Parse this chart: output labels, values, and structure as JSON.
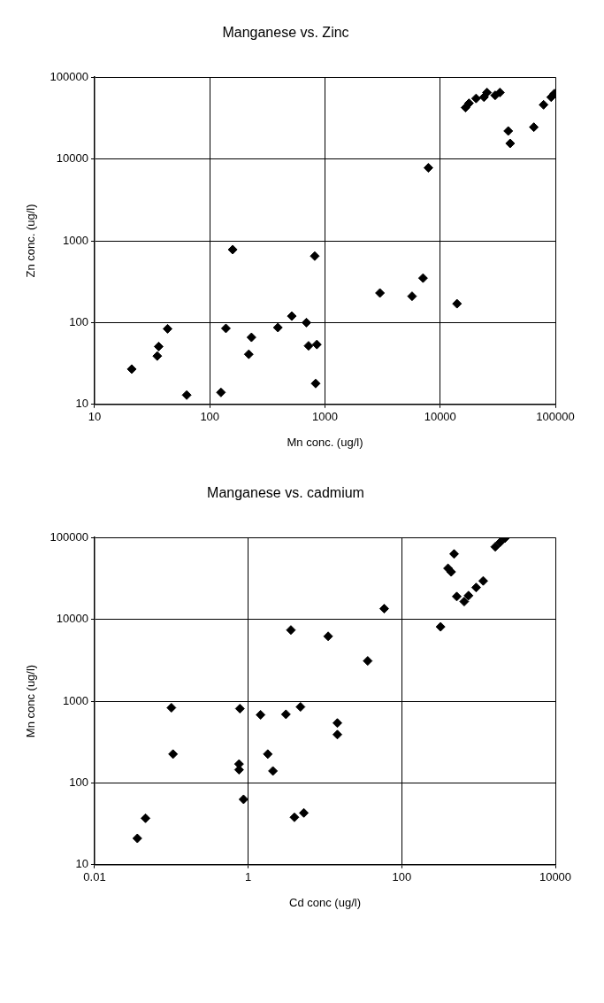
{
  "chart_data": [
    {
      "type": "scatter",
      "title": "Manganese vs. Zinc",
      "xlabel": "Mn conc. (ug/l)",
      "ylabel": "Zn conc. (ug/l)",
      "log": "xy",
      "grid": true,
      "marker": "diamond",
      "legend": false,
      "xlim": [
        10,
        100000
      ],
      "xticks": [
        10,
        100,
        1000,
        10000,
        100000
      ],
      "ylim": [
        10,
        100000
      ],
      "yticks": [
        10,
        100,
        1000,
        10000,
        100000
      ],
      "series": [
        {
          "color": "#000000",
          "x": [
            21,
            36,
            35,
            43,
            63,
            125,
            138,
            158,
            230,
            218,
            390,
            515,
            690,
            720,
            850,
            815,
            830,
            3000,
            5700,
            7100,
            7900,
            14000,
            16600,
            17800,
            20500,
            24000,
            25500,
            30000,
            33000,
            39000,
            40500,
            65000,
            79000,
            92000,
            98000
          ],
          "values": [
            27,
            51,
            39,
            84,
            13,
            14,
            85,
            780,
            66,
            41,
            87,
            120,
            100,
            52,
            54,
            650,
            18,
            230,
            210,
            350,
            7800,
            170,
            42500,
            48000,
            55000,
            57000,
            65000,
            60000,
            65000,
            22000,
            15500,
            24500,
            46000,
            57000,
            63000
          ]
        }
      ]
    },
    {
      "type": "scatter",
      "title": "Manganese vs. cadmium",
      "xlabel": "Cd conc (ug/l)",
      "ylabel": "Mn conc (ug/l)",
      "log": "xy",
      "grid": true,
      "marker": "diamond",
      "legend": false,
      "xlim": [
        0.01,
        10000
      ],
      "xticks": [
        0.01,
        1,
        100,
        10000
      ],
      "ylim": [
        10,
        100000
      ],
      "yticks": [
        10,
        100,
        1000,
        10000,
        100000
      ],
      "series": [
        {
          "color": "#000000",
          "x": [
            0.036,
            0.046,
            0.1,
            0.105,
            0.78,
            0.76,
            0.76,
            0.87,
            1.45,
            1.8,
            2.1,
            3.1,
            4.0,
            4.8,
            5.3,
            3.6,
            11,
            14.5,
            14.5,
            36,
            59,
            320,
            480,
            400,
            440,
            520,
            650,
            740,
            930,
            1150,
            1650,
            1900,
            2200
          ],
          "values": [
            21,
            37,
            830,
            225,
            810,
            145,
            170,
            63,
            680,
            225,
            140,
            690,
            38,
            850,
            43,
            7400,
            6200,
            540,
            390,
            3100,
            13500,
            8100,
            63000,
            42000,
            38000,
            19000,
            16500,
            19500,
            24500,
            29500,
            77000,
            87000,
            98000
          ]
        }
      ]
    }
  ]
}
